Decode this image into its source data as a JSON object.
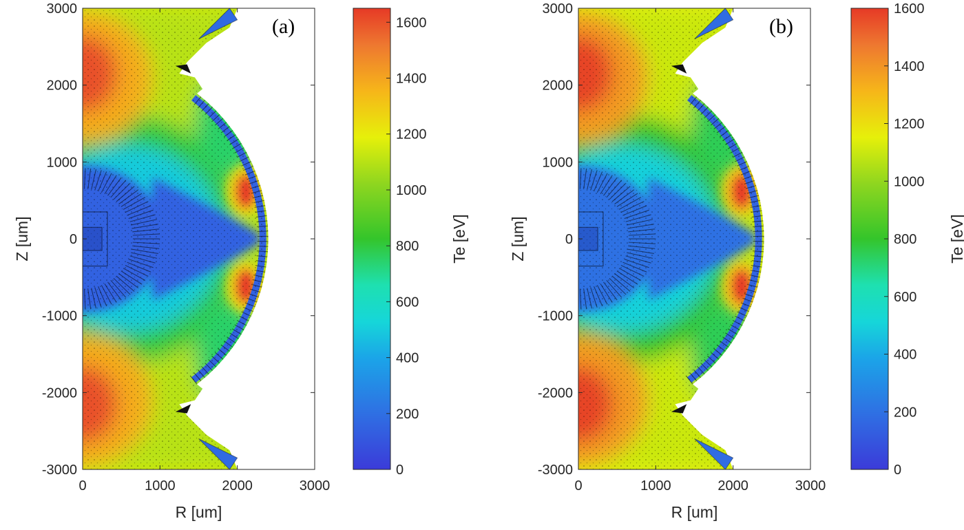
{
  "figure": {
    "panels": [
      {
        "panel_label": "(a)",
        "xlabel": "R [um]",
        "ylabel": "Z [um]",
        "colorbar_label": "Te [eV]",
        "colorbar_ticks": [
          "0",
          "200",
          "400",
          "600",
          "800",
          "1000",
          "1200",
          "1400",
          "1600"
        ]
      },
      {
        "panel_label": "(b)",
        "xlabel": "R [um]",
        "ylabel": "Z [um]",
        "colorbar_label": "Te [eV]",
        "colorbar_ticks": [
          "0",
          "200",
          "400",
          "600",
          "800",
          "1000",
          "1200",
          "1400",
          "1600"
        ]
      }
    ]
  },
  "chart_data": [
    {
      "type": "heatmap",
      "title": "",
      "panel_label": "(a)",
      "xlabel": "R [um]",
      "ylabel": "Z [um]",
      "xlim": [
        0,
        3000
      ],
      "ylim": [
        -3000,
        3000
      ],
      "xticks": [
        0,
        1000,
        2000,
        3000
      ],
      "yticks": [
        -3000,
        -2000,
        -1000,
        0,
        1000,
        2000,
        3000
      ],
      "colorbar": {
        "label": "Te [eV]",
        "range": [
          0,
          1650
        ],
        "ticks": [
          0,
          200,
          400,
          600,
          800,
          1000,
          1200,
          1400,
          1600
        ],
        "colormap": "jet"
      },
      "features": [
        {
          "region": "cold core (R<1000, |Z|<900)",
          "Te_eV": 150
        },
        {
          "region": "hot spot upper (R~2100, Z~600)",
          "Te_eV": 1650
        },
        {
          "region": "hot spot lower (R~2100, Z~-600)",
          "Te_eV": 1650
        },
        {
          "region": "hot lobe upper axis (R~0, Z~2100)",
          "Te_eV": 1600
        },
        {
          "region": "hot lobe lower axis (R~0, Z~-2100)",
          "Te_eV": 1600
        },
        {
          "region": "outer capsule edge (R~2400, Z~0)",
          "Te_eV": 150
        }
      ]
    },
    {
      "type": "heatmap",
      "title": "",
      "panel_label": "(b)",
      "xlabel": "R [um]",
      "ylabel": "Z [um]",
      "xlim": [
        0,
        3000
      ],
      "ylim": [
        -3000,
        3000
      ],
      "xticks": [
        0,
        1000,
        2000,
        3000
      ],
      "yticks": [
        -3000,
        -2000,
        -1000,
        0,
        1000,
        2000,
        3000
      ],
      "colorbar": {
        "label": "Te [eV]",
        "range": [
          0,
          1600
        ],
        "ticks": [
          0,
          200,
          400,
          600,
          800,
          1000,
          1200,
          1400,
          1600
        ],
        "colormap": "jet"
      },
      "features": [
        {
          "region": "cold core (R<1000, |Z|<900)",
          "Te_eV": 200
        },
        {
          "region": "hot spot upper (R~2100, Z~600)",
          "Te_eV": 1600
        },
        {
          "region": "hot spot lower (R~2100, Z~-600)",
          "Te_eV": 1600
        },
        {
          "region": "hot lobe upper axis (R~0, Z~2100)",
          "Te_eV": 1580
        },
        {
          "region": "hot lobe lower axis (R~0, Z~-2100)",
          "Te_eV": 1580
        },
        {
          "region": "outer capsule edge (R~2400, Z~0)",
          "Te_eV": 150
        }
      ]
    }
  ]
}
